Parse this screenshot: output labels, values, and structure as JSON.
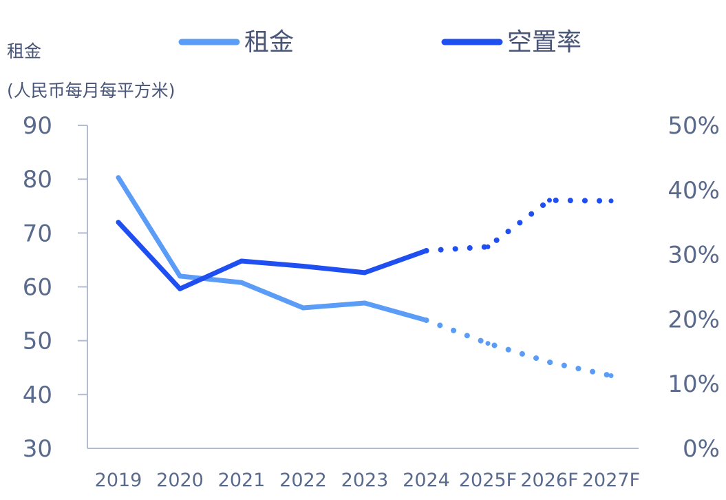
{
  "chart_data": {
    "type": "line",
    "ylabel_line1": "租金",
    "ylabel_line2": "(人民币每月每平方米)",
    "categories": [
      "2019",
      "2020",
      "2021",
      "2022",
      "2023",
      "2024",
      "2025F",
      "2026F",
      "2027F"
    ],
    "forecast_start_index": 5,
    "y_left": {
      "ylim": [
        30,
        90
      ],
      "ticks": [
        "30",
        "40",
        "50",
        "60",
        "70",
        "80",
        "90"
      ]
    },
    "y_right": {
      "ylim": [
        0,
        50
      ],
      "ticks": [
        "0%",
        "10%",
        "20%",
        "30%",
        "40%",
        "50%"
      ]
    },
    "series": [
      {
        "name": "租金",
        "axis": "left",
        "color": "#5b9cf6",
        "values": [
          80.3,
          62.0,
          60.8,
          56.1,
          57.0,
          53.8,
          49.5,
          46.0,
          43.5
        ]
      },
      {
        "name": "空置率",
        "axis": "right",
        "color": "#1f4ff0",
        "values": [
          35.0,
          24.7,
          29.0,
          28.2,
          27.2,
          30.6,
          31.2,
          38.4,
          38.3
        ]
      }
    ],
    "grid": false,
    "legend_position": "top"
  }
}
